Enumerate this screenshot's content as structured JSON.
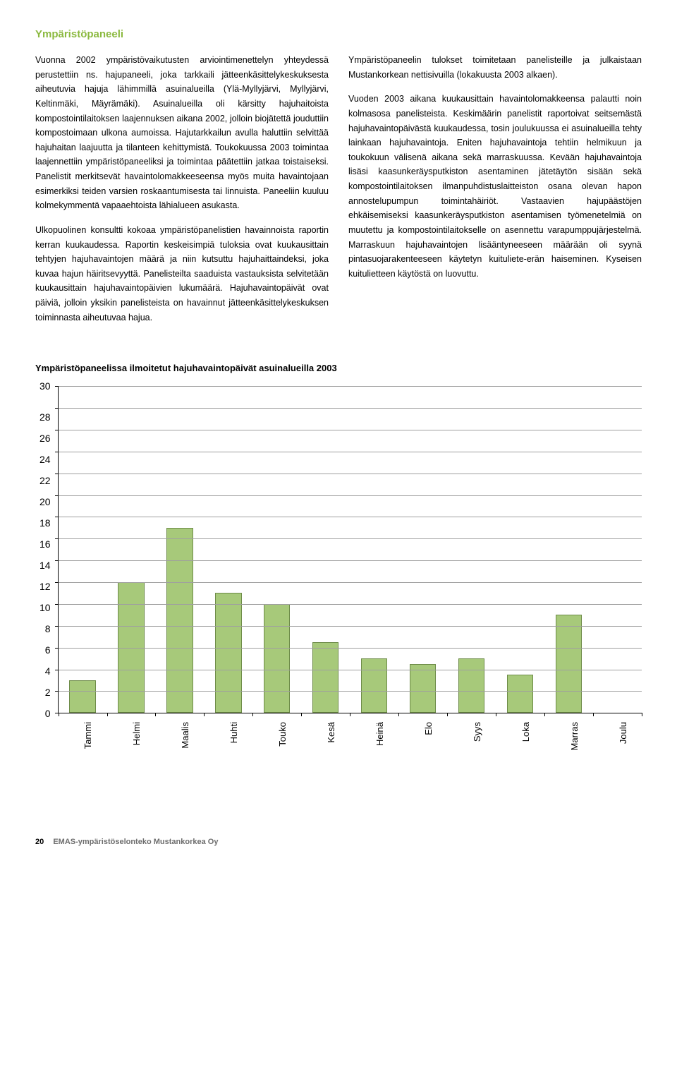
{
  "title": "Ympäristöpaneeli",
  "left_paragraphs": [
    "Vuonna 2002 ympäristövaikutusten arviointimenettelyn yhteydessä perustettiin ns. hajupaneeli, joka tarkkaili jätteenkäsittelykeskuksesta aiheutuvia hajuja lähimmillä asuinalueilla (Ylä-Myllyjärvi, Myllyjärvi, Keltinmäki, Mäyrämäki). Asuinalueilla oli kärsitty hajuhaitoista kompostointilaitoksen laajennuksen aikana 2002, jolloin biojätettä jouduttiin kompostoimaan ulkona aumoissa. Hajutarkkailun avulla haluttiin selvittää hajuhaitan laajuutta ja tilanteen kehittymistä. Toukokuussa 2003 toimintaa laajennettiin ympäristöpaneeliksi ja toimintaa päätettiin jatkaa toistaiseksi. Panelistit merkitsevät havaintolomakkeeseensa myös muita havaintojaan esimerkiksi teiden varsien roskaantumisesta tai linnuista. Paneeliin kuuluu kolmekymmentä vapaaehtoista lähialueen asukasta.",
    "Ulkopuolinen konsultti kokoaa ympäristöpanelistien havainnoista raportin kerran kuukaudessa. Raportin keskeisimpiä tuloksia ovat kuukausittain tehtyjen hajuhavaintojen määrä ja niin kutsuttu hajuhaittaindeksi, joka kuvaa hajun häiritsevyyttä. Panelisteilta saaduista vastauksista selvitetään kuukausittain hajuhavaintopäivien lukumäärä. Hajuhavaintopäivät ovat päiviä, jolloin yksikin panelisteista on havainnut jätteenkäsittelykeskuksen toiminnasta aiheutuvaa hajua."
  ],
  "right_paragraphs": [
    "Ympäristöpaneelin tulokset toimitetaan panelisteille ja julkaistaan Mustankorkean nettisivuilla (lokakuusta 2003 alkaen).",
    "Vuoden 2003 aikana kuukausittain havaintolomakkeensa palautti noin kolmasosa panelisteista. Keskimäärin panelistit raportoivat seitsemästä hajuhavaintopäivästä kuukaudessa, tosin joulukuussa ei asuinalueilla tehty lainkaan hajuhavaintoja. Eniten hajuhavaintoja tehtiin helmikuun ja toukokuun välisenä aikana sekä marraskuussa. Kevään hajuhavaintoja lisäsi kaasunkeräysputkiston asentaminen jätetäytön sisään sekä kompostointilaitoksen ilmanpuhdistuslaitteiston osana olevan hapon annostelupumpun toimintahäiriöt. Vastaavien hajupäästöjen ehkäisemiseksi kaasunkeräysputkiston asentamisen työmenetelmiä on muutettu ja kompostointilaitokselle on asennettu varapumppujärjestelmä. Marraskuun hajuhavaintojen lisääntyneeseen määrään oli syynä pintasuojarakenteeseen käytetyn kuituliete-erän haiseminen. Kyseisen kuitulietteen käytöstä on luovuttu."
  ],
  "chart": {
    "title": "Ympäristöpaneelissa ilmoitetut hajuhavaintopäivät asuinalueilla 2003",
    "type": "bar",
    "categories": [
      "Tammi",
      "Helmi",
      "Maalis",
      "Huhti",
      "Touko",
      "Kesä",
      "Heinä",
      "Elo",
      "Syys",
      "Loka",
      "Marras",
      "Joulu"
    ],
    "values": [
      3,
      12,
      17,
      11,
      10,
      6.5,
      5,
      4.5,
      5,
      3.5,
      9,
      0
    ],
    "y_ticks": [
      30,
      28,
      26,
      24,
      22,
      20,
      18,
      16,
      14,
      12,
      10,
      8,
      6,
      4,
      2,
      0
    ],
    "ylim_max": 30,
    "bar_color": "#a7c97a",
    "bar_border": "#6d8b48",
    "grid_color": "#9f9f9f",
    "axis_color": "#000000",
    "background_color": "#ffffff",
    "label_fontsize": 13,
    "tick_fontsize": 14
  },
  "footer": {
    "page_number": "20",
    "text": "EMAS-ympäristöselonteko Mustankorkea Oy"
  }
}
